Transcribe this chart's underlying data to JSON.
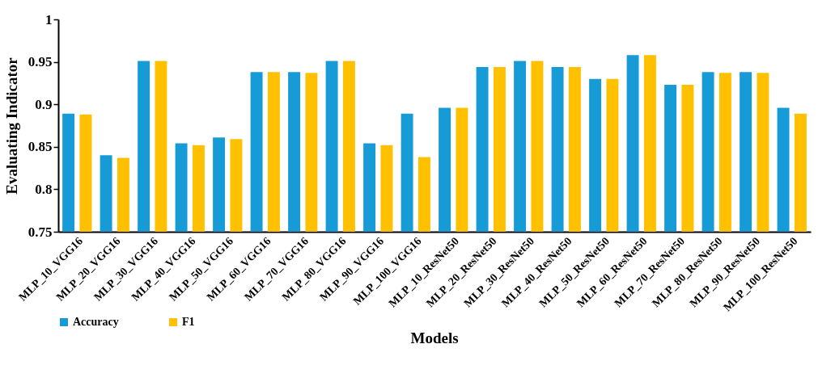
{
  "chart_data": {
    "type": "bar",
    "xlabel": "Models",
    "ylabel": "Evaluating Indicator",
    "categories": [
      "MLP_10_VGG16",
      "MLP_20_VGG16",
      "MLP_30_VGG16",
      "MLP_40_VGG16",
      "MLP_50_VGG16",
      "MLP_60_VGG16",
      "MLP_70_VGG16",
      "MLP_80_VGG16",
      "MLP_90_VGG16",
      "MLP_100_VGG16",
      "MLP_10_ResNet50",
      "MLP_20_ResNet50",
      "MLP_30_ResNet50",
      "MLP_40_ResNet50",
      "MLP_50_ResNet50",
      "MLP_60_ResNet50",
      "MLP_70_ResNet50",
      "MLP_80_ResNet50",
      "MLP_90_ResNet50",
      "MLP_100_ResNet50"
    ],
    "series": [
      {
        "name": "Accuracy",
        "color": "#179bd7",
        "values": [
          0.889,
          0.84,
          0.951,
          0.854,
          0.861,
          0.938,
          0.938,
          0.951,
          0.854,
          0.889,
          0.896,
          0.944,
          0.951,
          0.944,
          0.93,
          0.958,
          0.923,
          0.938,
          0.938,
          0.896
        ]
      },
      {
        "name": "F1",
        "color": "#ffc000",
        "values": [
          0.888,
          0.837,
          0.951,
          0.852,
          0.859,
          0.938,
          0.937,
          0.951,
          0.852,
          0.838,
          0.896,
          0.944,
          0.951,
          0.944,
          0.93,
          0.958,
          0.923,
          0.937,
          0.937,
          0.889
        ]
      }
    ],
    "ylim": [
      0.75,
      1
    ],
    "yticks": [
      0.75,
      0.8,
      0.85,
      0.9,
      0.95,
      1
    ],
    "grid": false,
    "legend": "bottom"
  }
}
